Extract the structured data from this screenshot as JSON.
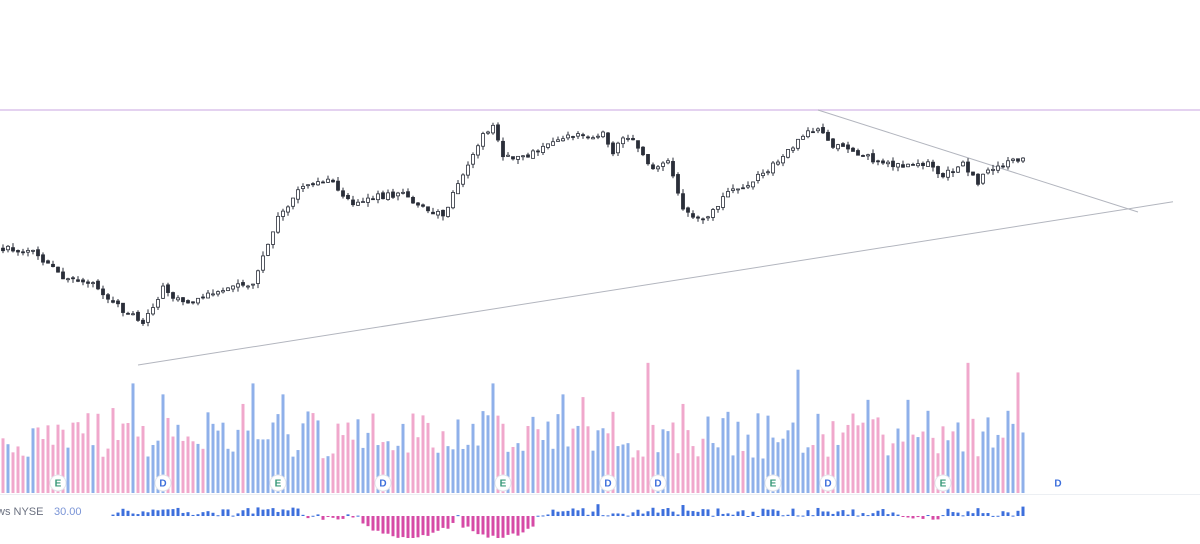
{
  "colors": {
    "background": "#ffffff",
    "candle": "#2a2e39",
    "volume_up": "#8fb0ea",
    "volume_down": "#f0a8cc",
    "resistance_line": "#dcc4ec",
    "trendline": "#b2b5be",
    "indicator_pos": "#3d6fdc",
    "indicator_neg": "#d64aa6",
    "marker_e": "#3a9a7a",
    "marker_d": "#3d6fdc",
    "label_text": "#6b7180",
    "label_value": "#7a94d6"
  },
  "indicator": {
    "name": "ws NYSE",
    "value": "30.00"
  },
  "chart_data": {
    "type": "candlestick",
    "title": "",
    "xlabel": "",
    "ylabel": "",
    "candle_count": 205,
    "price_range": [
      0,
      100
    ],
    "anchor_closes": [
      [
        0,
        46
      ],
      [
        6,
        44
      ],
      [
        12,
        35
      ],
      [
        18,
        32
      ],
      [
        24,
        21
      ],
      [
        28,
        17
      ],
      [
        32,
        30
      ],
      [
        36,
        24
      ],
      [
        40,
        27
      ],
      [
        45,
        31
      ],
      [
        50,
        31
      ],
      [
        55,
        58
      ],
      [
        60,
        70
      ],
      [
        65,
        73
      ],
      [
        70,
        63
      ],
      [
        75,
        66
      ],
      [
        80,
        67
      ],
      [
        85,
        60
      ],
      [
        88,
        59
      ],
      [
        92,
        75
      ],
      [
        95,
        87
      ],
      [
        98,
        95
      ],
      [
        100,
        82
      ],
      [
        105,
        82
      ],
      [
        110,
        88
      ],
      [
        115,
        90
      ],
      [
        118,
        89
      ],
      [
        120,
        91
      ],
      [
        122,
        84
      ],
      [
        125,
        90
      ],
      [
        130,
        76
      ],
      [
        133,
        79
      ],
      [
        136,
        62
      ],
      [
        140,
        56
      ],
      [
        145,
        68
      ],
      [
        150,
        72
      ],
      [
        155,
        80
      ],
      [
        160,
        90
      ],
      [
        163,
        92
      ],
      [
        166,
        86
      ],
      [
        170,
        84
      ],
      [
        175,
        80
      ],
      [
        180,
        78
      ],
      [
        185,
        79
      ],
      [
        188,
        74
      ],
      [
        192,
        79
      ],
      [
        195,
        72
      ],
      [
        198,
        77
      ],
      [
        202,
        80
      ],
      [
        204,
        82
      ]
    ],
    "volume": {
      "range": [
        0,
        100
      ],
      "up_pct": [
        72,
        60,
        80,
        55,
        85,
        68,
        75,
        90
      ],
      "down_pct": [
        65,
        95,
        58,
        88,
        70,
        100,
        62,
        82
      ]
    },
    "markers": [
      {
        "label": "E",
        "type": "earnings"
      },
      {
        "label": "D",
        "type": "dividend"
      },
      {
        "label": "E",
        "type": "earnings"
      },
      {
        "label": "D",
        "type": "dividend"
      },
      {
        "label": "E",
        "type": "earnings"
      },
      {
        "label": "D",
        "type": "dividend"
      },
      {
        "label": "D",
        "type": "dividend"
      },
      {
        "label": "E",
        "type": "earnings"
      },
      {
        "label": "D",
        "type": "dividend"
      },
      {
        "label": "E",
        "type": "earnings"
      },
      {
        "label": "D",
        "type": "dividend",
        "future": true
      }
    ],
    "marker_candle_index": [
      11,
      32,
      55,
      76,
      100,
      121,
      131,
      154,
      165,
      188,
      211
    ],
    "lines": [
      {
        "kind": "horizontal_resistance",
        "price": 100
      },
      {
        "kind": "rising_trendline",
        "from": [
          27,
          0
        ],
        "to": [
          234,
          64
        ]
      },
      {
        "kind": "falling_trendline",
        "from": [
          163,
          100
        ],
        "to": [
          227,
          60
        ]
      }
    ]
  }
}
